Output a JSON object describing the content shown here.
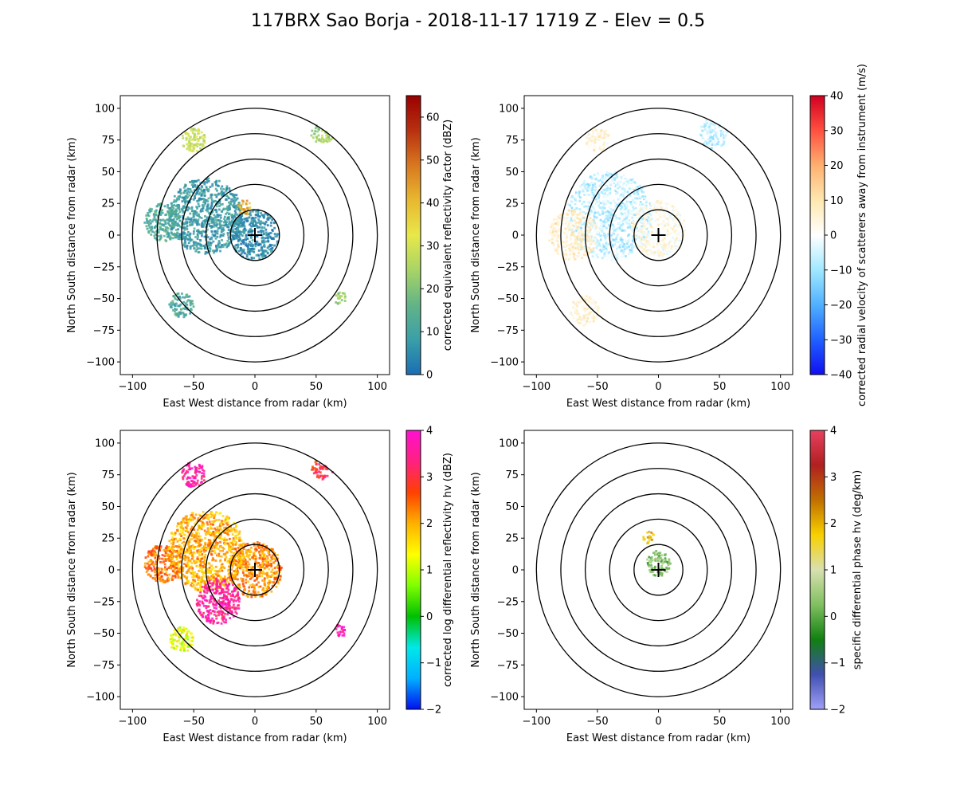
{
  "figure": {
    "title": "117BRX Sao Borja - 2018-11-17 1719 Z -  Elev = 0.5"
  },
  "chart_data": [
    {
      "type": "heatmap",
      "name": "reflectivity",
      "xlabel": "East West distance from radar (km)",
      "ylabel": "North South distance from radar (km)",
      "xlim": [
        -110,
        110
      ],
      "ylim": [
        -110,
        110
      ],
      "xticks": [
        -100,
        -50,
        0,
        50,
        100
      ],
      "yticks": [
        -100,
        -75,
        -50,
        -25,
        0,
        25,
        50,
        75,
        100
      ],
      "range_rings_km": [
        20,
        40,
        60,
        80,
        100
      ],
      "colorbar": {
        "label": "corrected equivalent reflectivity factor (dBZ)",
        "range": [
          0,
          65
        ],
        "ticks": [
          0,
          10,
          20,
          30,
          40,
          50,
          60
        ],
        "colors": [
          "#1a6eb4",
          "#3a9fa8",
          "#62b486",
          "#a8d466",
          "#e8e84a",
          "#e8b830",
          "#d87820",
          "#b83010",
          "#9a0000"
        ]
      },
      "echo_regions": [
        {
          "x": 0,
          "y": 0,
          "r": 20,
          "value": 5
        },
        {
          "x": -40,
          "y": 15,
          "r": 30,
          "value": 8
        },
        {
          "x": -75,
          "y": 10,
          "r": 15,
          "value": 12
        },
        {
          "x": -50,
          "y": 75,
          "r": 10,
          "value": 28
        },
        {
          "x": 55,
          "y": 80,
          "r": 9,
          "value": 24
        },
        {
          "x": -60,
          "y": -55,
          "r": 10,
          "value": 12
        },
        {
          "x": 70,
          "y": -50,
          "r": 5,
          "value": 22
        },
        {
          "x": -8,
          "y": 22,
          "r": 6,
          "value": 42
        }
      ]
    },
    {
      "type": "heatmap",
      "name": "velocity",
      "xlabel": "East West distance from radar (km)",
      "ylabel": "North South distance from radar (km)",
      "xlim": [
        -110,
        110
      ],
      "ylim": [
        -110,
        110
      ],
      "xticks": [
        -100,
        -50,
        0,
        50,
        100
      ],
      "yticks": [
        -100,
        -75,
        -50,
        -25,
        0,
        25,
        50,
        75,
        100
      ],
      "range_rings_km": [
        20,
        40,
        60,
        80,
        100
      ],
      "colorbar": {
        "label": "corrected radial velocity of scatterers away from instrument (m/s)",
        "range": [
          -40,
          40
        ],
        "ticks": [
          -40,
          -30,
          -20,
          -10,
          0,
          10,
          20,
          30,
          40
        ],
        "colors": [
          "#1010f0",
          "#2060ff",
          "#50b0ff",
          "#a0e8ff",
          "#ffffff",
          "#ffe8b0",
          "#ffb070",
          "#ff5040",
          "#d00020"
        ]
      },
      "echo_regions": [
        {
          "x": -40,
          "y": 15,
          "r": 35,
          "value": -6
        },
        {
          "x": 0,
          "y": 5,
          "r": 22,
          "value": 3
        },
        {
          "x": -70,
          "y": 0,
          "r": 20,
          "value": 6
        },
        {
          "x": 45,
          "y": 80,
          "r": 12,
          "value": -7
        },
        {
          "x": -60,
          "y": -60,
          "r": 12,
          "value": 5
        },
        {
          "x": -50,
          "y": 75,
          "r": 10,
          "value": 5
        }
      ]
    },
    {
      "type": "heatmap",
      "name": "differential_reflectivity",
      "xlabel": "East West distance from radar (km)",
      "ylabel": "North South distance from radar (km)",
      "xlim": [
        -110,
        110
      ],
      "ylim": [
        -110,
        110
      ],
      "xticks": [
        -100,
        -50,
        0,
        50,
        100
      ],
      "yticks": [
        -100,
        -75,
        -50,
        -25,
        0,
        25,
        50,
        75,
        100
      ],
      "range_rings_km": [
        20,
        40,
        60,
        80,
        100
      ],
      "colorbar": {
        "label": "corrected log differential reflectivity hv (dBZ)",
        "range": [
          -2,
          4
        ],
        "ticks": [
          -2,
          -1,
          0,
          1,
          2,
          3,
          4
        ],
        "colors": [
          "#0010f0",
          "#00b0ff",
          "#00e8e8",
          "#00c000",
          "#80ff00",
          "#ffff00",
          "#ffb000",
          "#ff4000",
          "#ff2080",
          "#ff10d0"
        ]
      },
      "echo_regions": [
        {
          "x": 0,
          "y": 0,
          "r": 22,
          "value": 2.2
        },
        {
          "x": -40,
          "y": 15,
          "r": 32,
          "value": 2.0
        },
        {
          "x": -30,
          "y": -25,
          "r": 18,
          "value": 3.6
        },
        {
          "x": -75,
          "y": 5,
          "r": 15,
          "value": 2.4
        },
        {
          "x": -50,
          "y": 75,
          "r": 10,
          "value": 3.6
        },
        {
          "x": 55,
          "y": 80,
          "r": 9,
          "value": 3.0
        },
        {
          "x": -60,
          "y": -55,
          "r": 10,
          "value": 1.2
        },
        {
          "x": 70,
          "y": -48,
          "r": 5,
          "value": 3.8
        }
      ]
    },
    {
      "type": "heatmap",
      "name": "specific_differential_phase",
      "xlabel": "East West distance from radar (km)",
      "ylabel": "North South distance from radar (km)",
      "xlim": [
        -110,
        110
      ],
      "ylim": [
        -110,
        110
      ],
      "xticks": [
        -100,
        -50,
        0,
        50,
        100
      ],
      "yticks": [
        -100,
        -75,
        -50,
        -25,
        0,
        25,
        50,
        75,
        100
      ],
      "range_rings_km": [
        20,
        40,
        60,
        80,
        100
      ],
      "colorbar": {
        "label": "specific differential phase hv (deg/km)",
        "range": [
          -2,
          4
        ],
        "ticks": [
          -2,
          -1,
          0,
          1,
          2,
          3,
          4
        ],
        "colors": [
          "#a0a0f8",
          "#4050b0",
          "#108010",
          "#80c060",
          "#d8e0b0",
          "#f8d000",
          "#c07000",
          "#b02020",
          "#e84060"
        ]
      },
      "echo_regions": [
        {
          "x": 0,
          "y": 5,
          "r": 10,
          "value": 0.2
        },
        {
          "x": -8,
          "y": 25,
          "r": 5,
          "value": 1.9
        }
      ]
    }
  ]
}
